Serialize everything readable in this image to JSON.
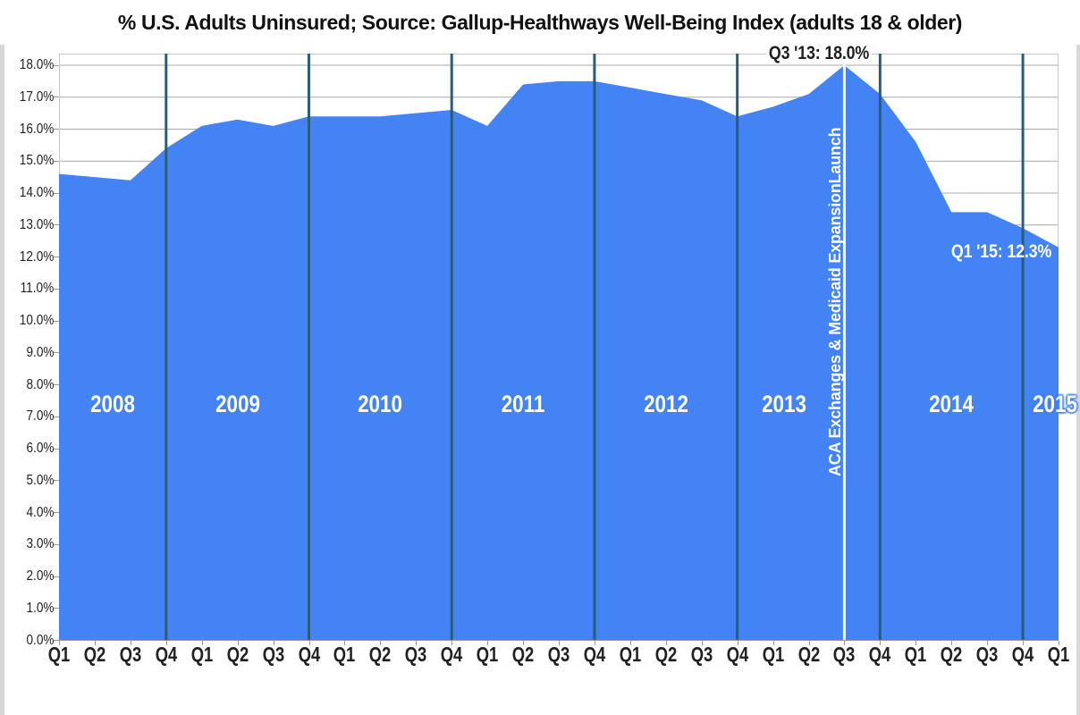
{
  "title": "% U.S. Adults Uninsured; Source: Gallup-Healthways Well-Being Index (adults 18 & older)",
  "chart_data": {
    "type": "area",
    "title": "% U.S. Adults Uninsured; Source: Gallup-Healthways Well-Being Index (adults 18 & older)",
    "x_labels": [
      "Q1",
      "Q2",
      "Q3",
      "Q4",
      "Q1",
      "Q2",
      "Q3",
      "Q4",
      "Q1",
      "Q2",
      "Q3",
      "Q4",
      "Q1",
      "Q2",
      "Q3",
      "Q4",
      "Q1",
      "Q2",
      "Q3",
      "Q4",
      "Q1",
      "Q2",
      "Q3",
      "Q4",
      "Q1",
      "Q2",
      "Q3",
      "Q4",
      "Q1"
    ],
    "x_range_note": "quarterly, 2008 Q1 through 2015 Q1",
    "series": [
      {
        "name": "% U.S. adults uninsured",
        "values": [
          14.6,
          14.5,
          14.4,
          15.4,
          16.1,
          16.3,
          16.1,
          16.4,
          16.4,
          16.4,
          16.5,
          16.6,
          16.1,
          17.4,
          17.5,
          17.5,
          17.3,
          17.1,
          16.9,
          16.4,
          16.7,
          17.1,
          18.0,
          17.1,
          15.6,
          13.4,
          13.4,
          12.9,
          12.3
        ]
      }
    ],
    "y_axis": {
      "min": 0,
      "max": 18.36,
      "tick_step": 1.0,
      "tick_labels": [
        "0.0%",
        "1.0%",
        "2.0%",
        "3.0%",
        "4.0%",
        "5.0%",
        "6.0%",
        "7.0%",
        "8.0%",
        "9.0%",
        "10.0%",
        "11.0%",
        "12.0%",
        "13.0%",
        "14.0%",
        "15.0%",
        "16.0%",
        "17.0%",
        "18.0%"
      ]
    },
    "grid": true,
    "legend": null,
    "year_labels": [
      {
        "label": "2008",
        "center_q": 1.5,
        "style": ""
      },
      {
        "label": "2009",
        "center_q": 5.0,
        "style": ""
      },
      {
        "label": "2010",
        "center_q": 9.0,
        "style": ""
      },
      {
        "label": "2011",
        "center_q": 13.0,
        "style": ""
      },
      {
        "label": "2012",
        "center_q": 17.0,
        "style": ""
      },
      {
        "label": "2013",
        "center_q": 20.3,
        "style": ""
      },
      {
        "label": "2014",
        "center_q": 25.0,
        "style": ""
      },
      {
        "label": "2015",
        "center_q": 27.9,
        "style": "glow"
      }
    ],
    "year_divider_quarters": [
      3,
      7,
      11,
      15,
      19,
      23,
      27
    ],
    "event_line": {
      "q": 22,
      "label": "ACA Exchanges & Medicaid ExpansionLaunch"
    },
    "annotations": [
      {
        "id": "peak",
        "text": "Q3 '13: 18.0%",
        "q": 21.3,
        "pct": 18.36,
        "color": "#1f1f1f",
        "bg": "#ffffff"
      },
      {
        "id": "latest",
        "text": "Q1 '15: 12.3%",
        "q": 26.4,
        "pct": 12.15,
        "color": "#ffffff",
        "bg": ""
      }
    ]
  },
  "colors": {
    "area": "#4483f4",
    "year_divider": "#2b5d77",
    "event_line": "#ffffff",
    "gridline": "#a9a9a9",
    "frame": "#c8c8c8",
    "axis": "#9a9a9a",
    "text": "#1f1f1f",
    "year_text": "#ffffff"
  }
}
